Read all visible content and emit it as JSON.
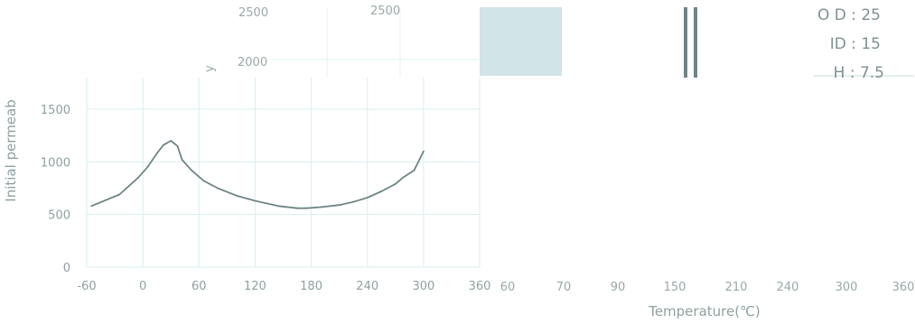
{
  "chart_data": {
    "type": "line",
    "title": "",
    "ylabel": "Initial permeab",
    "xlabel": "Temperature(℃)",
    "xlim": [
      -60,
      360
    ],
    "ylim": [
      0,
      1800
    ],
    "x_ticks": [
      "-60",
      "0",
      "60",
      "120",
      "180",
      "240",
      "300",
      "360"
    ],
    "y_ticks": [
      "0",
      "500",
      "1000",
      "1500"
    ],
    "grid": true,
    "series": [
      {
        "color": "#6f8585",
        "x": [
          -55,
          -25,
          -5,
          5,
          15,
          22,
          30,
          37,
          42,
          52,
          65,
          80,
          100,
          120,
          145,
          165,
          175,
          190,
          210,
          225,
          240,
          255,
          270,
          278,
          290,
          300
        ],
        "y": [
          580,
          690,
          850,
          950,
          1080,
          1160,
          1200,
          1150,
          1020,
          920,
          820,
          750,
          680,
          630,
          580,
          560,
          560,
          570,
          590,
          620,
          660,
          720,
          790,
          850,
          920,
          1100
        ]
      }
    ]
  },
  "backdrop": {
    "top_ticks": [
      "2500",
      "2500",
      "2000"
    ],
    "top_ylabel_fragment": "y",
    "bottom_ticks": [
      "60",
      "70",
      "90",
      "150",
      "210",
      "240",
      "300",
      "360"
    ],
    "dims": {
      "od": "O D : 25",
      "id": "ID : 15",
      "h": "H : 7.5"
    },
    "colors": {
      "line": "#6f8585",
      "grid": "#d9efef",
      "block": "#d1e4e7"
    }
  }
}
